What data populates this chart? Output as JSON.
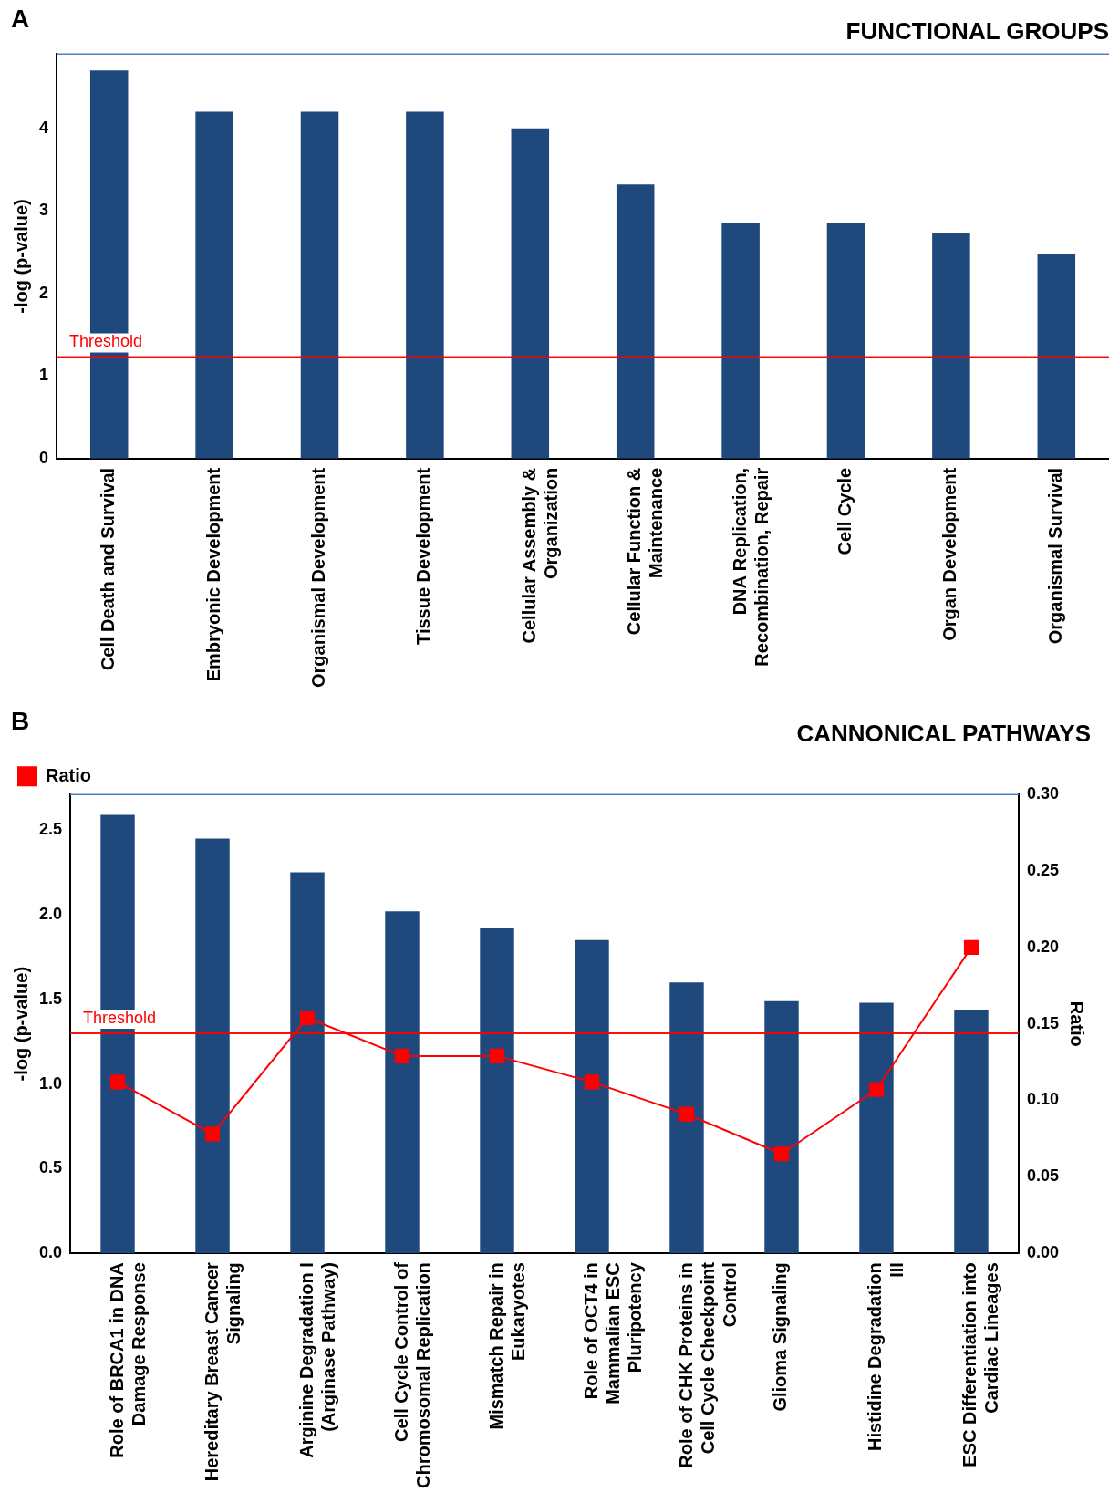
{
  "chart_data": [
    {
      "type": "bar",
      "title": "FUNCTIONAL GROUPS",
      "ylabel": "-log (p-value)",
      "annotations": [
        "A"
      ],
      "categories": [
        "Cell Death and Survival",
        "Embryonic Development",
        "Organismal Development",
        "Tissue Development",
        "Cellular Assembly & Organization",
        "Cellular Function & Maintenance",
        "DNA Replication, Recombination, Repair",
        "Cell Cycle",
        "Organ Development",
        "Organismal Survival"
      ],
      "series": [
        {
          "color": "#1f497d",
          "values": [
            4.7,
            4.2,
            4.2,
            4.2,
            4.0,
            3.32,
            2.86,
            2.86,
            2.73,
            2.48
          ]
        }
      ],
      "ylim": [
        0,
        4.9
      ],
      "yticks": [
        0,
        1,
        2,
        3,
        4
      ],
      "grid": false,
      "legend": false,
      "ref_lines": [
        {
          "axis": "y",
          "value": 1.23,
          "label": "Threshold",
          "color": "#ff0000"
        }
      ]
    },
    {
      "type": "bar",
      "title": "CANNONICAL PATHWAYS",
      "ylabel": "-log (p-value)",
      "y2label": "Ratio",
      "annotations": [
        "B"
      ],
      "categories": [
        "Role of BRCA1 in DNA Damage Response",
        "Hereditary Breast Cancer Signaling",
        "Arginine Degradation I (Arginase Pathway)",
        "Cell Cycle Control of Chromosomal Replication",
        "Mismatch Repair in Eukaryotes",
        "Role of OCT4 in Mammalian ESC Pluripotency",
        "Role of CHK Proteins in Cell Cycle Checkpoint Control",
        "Glioma Signaling",
        "Histidine Degradation III",
        "ESC Differentiation into Cardiac Lineages"
      ],
      "series": [
        {
          "color": "#1f497d",
          "values": [
            2.59,
            2.45,
            2.25,
            2.02,
            1.92,
            1.85,
            1.6,
            1.49,
            1.48,
            1.44
          ]
        },
        {
          "type": "line",
          "name": "Ratio",
          "axis": "y2",
          "color": "#ff0000",
          "marker": "square",
          "values": [
            0.112,
            0.078,
            0.154,
            0.129,
            0.129,
            0.112,
            0.091,
            0.065,
            0.107,
            0.2
          ]
        }
      ],
      "ylim": [
        0,
        2.71
      ],
      "yticks": [
        {
          "value": 0,
          "label": "0.0"
        },
        {
          "value": 0.5,
          "label": "0.5"
        },
        {
          "value": 1,
          "label": "1.0"
        },
        {
          "value": 1.5,
          "label": "1.5"
        },
        {
          "value": 2,
          "label": "2.0"
        },
        {
          "value": 2.5,
          "label": "2.5"
        }
      ],
      "y2lim": [
        0,
        0.3
      ],
      "y2ticks": [
        {
          "value": 0,
          "label": "0.00"
        },
        {
          "value": 0.05,
          "label": "0.05"
        },
        {
          "value": 0.1,
          "label": "0.10"
        },
        {
          "value": 0.15,
          "label": "0.15"
        },
        {
          "value": 0.2,
          "label": "0.20"
        },
        {
          "value": 0.25,
          "label": "0.25"
        },
        {
          "value": 0.3,
          "label": "0.30"
        }
      ],
      "grid": false,
      "legend": "top left",
      "ref_lines": [
        {
          "axis": "y",
          "value": 1.3,
          "label": "Threshold",
          "color": "#ff0000"
        }
      ]
    }
  ]
}
